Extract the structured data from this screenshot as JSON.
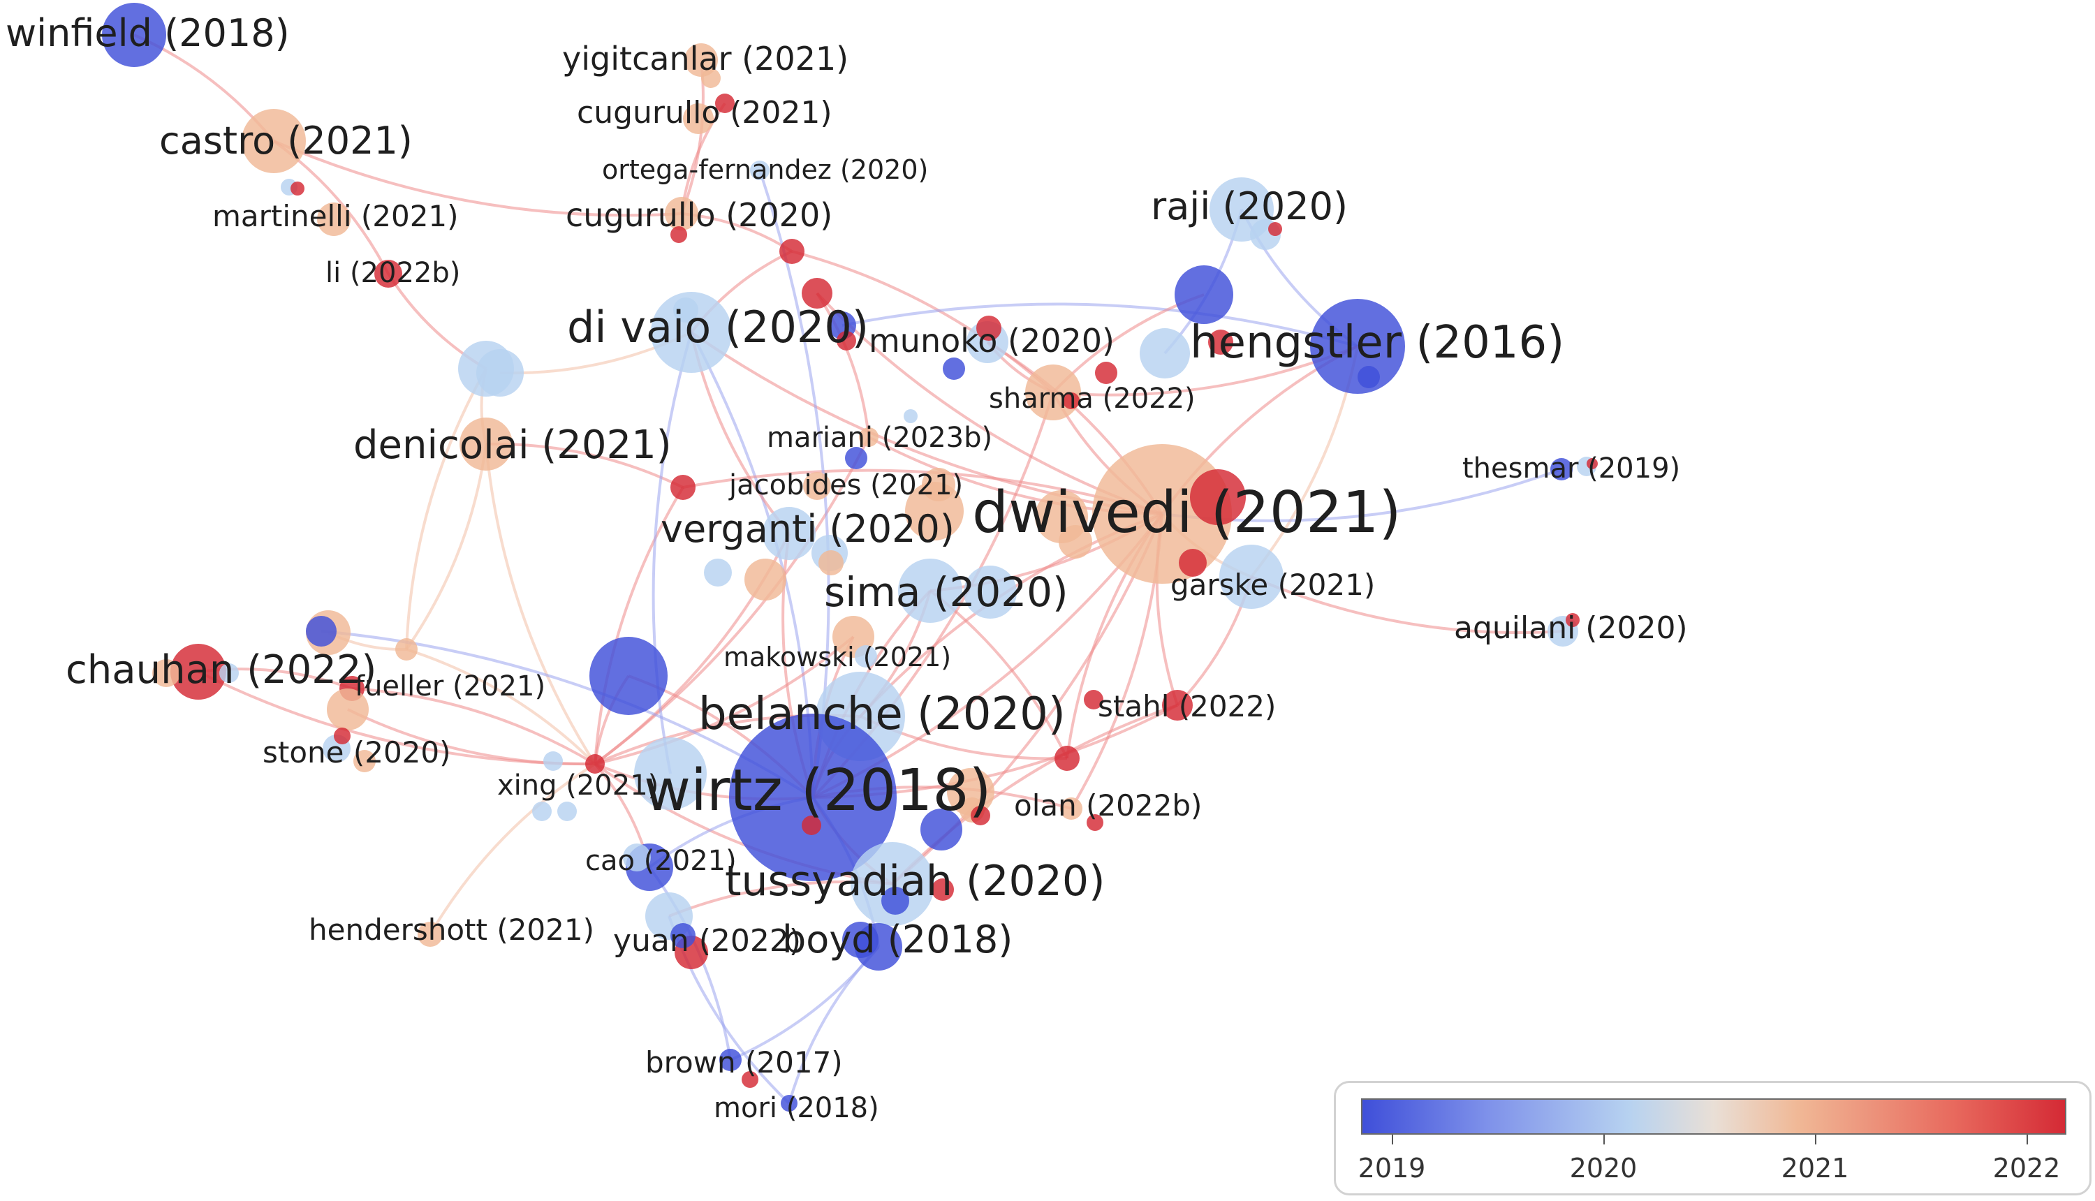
{
  "colors": {
    "year_2019": "#3f4fd9",
    "year_2020": "#b7d2f0",
    "year_2021": "#f0b896",
    "year_2022": "#d42a35",
    "link_red": "#ee8a8a",
    "link_blue": "#9aa4ee"
  },
  "legend": {
    "ticks": [
      "2019",
      "2020",
      "2021",
      "2022"
    ]
  },
  "labels": {
    "winfield": "winfield (2018)",
    "yigitcanlar": "yigitcanlar (2021)",
    "cugurullo2021": "cugurullo (2021)",
    "castro": "castro (2021)",
    "ortega": "ortega-fernandez (2020)",
    "martinelli": "martinelli (2021)",
    "cugurullo2020": "cugurullo (2020)",
    "raji": "raji (2020)",
    "li": "li (2022b)",
    "divaio": "di vaio (2020)",
    "munoko": "munoko (2020)",
    "hengstler": "hengstler (2016)",
    "sharma": "sharma (2022)",
    "mariani": "mariani (2023b)",
    "denicolai": "denicolai (2021)",
    "thesmar": "thesmar (2019)",
    "jacobides": "jacobides (2021)",
    "dwivedi": "dwivedi (2021)",
    "verganti": "verganti (2020)",
    "garske": "garske (2021)",
    "sima": "sima (2020)",
    "aquilani": "aquilani (2020)",
    "makowski": "makowski (2021)",
    "chauhan": "chauhan (2022)",
    "fueller": "fueller (2021)",
    "stahl": "stahl (2022)",
    "belanche": "belanche (2020)",
    "stone": "stone (2020)",
    "xing": "xing (2021)",
    "wirtz": "wirtz (2018)",
    "olan": "olan (2022b)",
    "cao": "cao (2021)",
    "tussyadiah": "tussyadiah (2020)",
    "hendershott": "hendershott (2021)",
    "yuan": "yuan (2022)",
    "boyd": "boyd (2018)",
    "brown": "brown (2017)",
    "mori": "mori (2018)"
  }
}
